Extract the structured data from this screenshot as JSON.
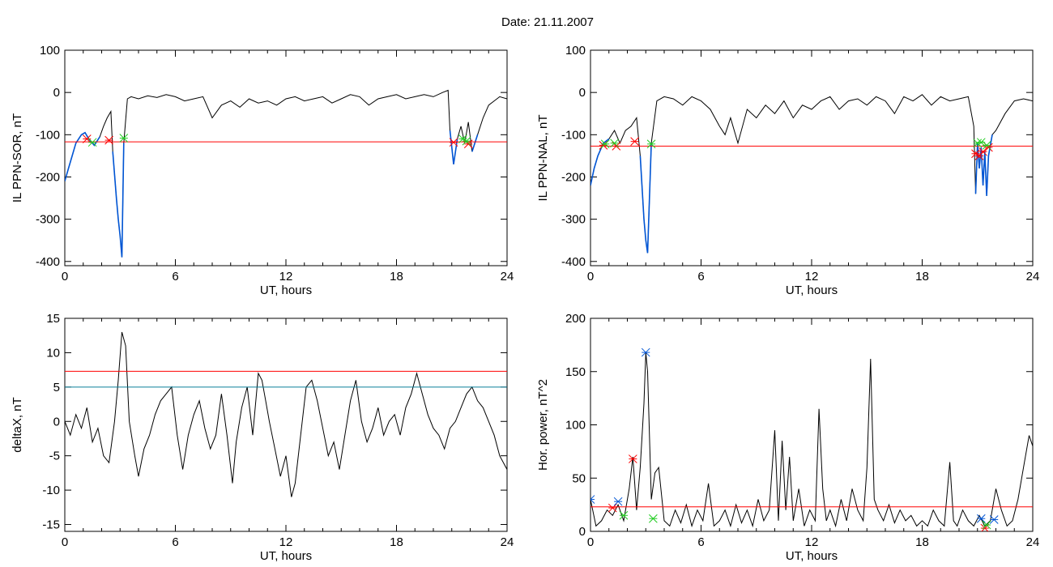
{
  "title": "Date:  21.11.2007",
  "colors": {
    "data": "#000000",
    "threshold": "#ff0000",
    "blue": "#0055d4",
    "green": "#22cc22",
    "teal": "#0a7f9a"
  },
  "chart_data": [
    {
      "type": "line",
      "id": "sor",
      "ylabel": "IL PPN-SOR, nT",
      "xlabel": "UT, hours",
      "xlim": [
        0,
        24
      ],
      "ylim": [
        -410,
        100
      ],
      "xticks": [
        0,
        6,
        12,
        18,
        24
      ],
      "yticks": [
        -400,
        -300,
        -200,
        -100,
        0,
        100
      ],
      "series": [
        {
          "role": "signal",
          "x": [
            0,
            0.2,
            0.4,
            0.6,
            0.9,
            1.1,
            1.3,
            1.6,
            1.9,
            2.1,
            2.3,
            2.5,
            2.6,
            2.8,
            2.9,
            3.0,
            3.1,
            3.2,
            3.4,
            3.6,
            4.0,
            4.5,
            5.0,
            5.5,
            6.0,
            6.5,
            7.0,
            7.5,
            8.0,
            8.5,
            9.0,
            9.5,
            10.0,
            10.5,
            11.0,
            11.5,
            12.0,
            12.5,
            13.0,
            13.5,
            14.0,
            14.5,
            15.0,
            15.5,
            16.0,
            16.5,
            17.0,
            17.5,
            18.0,
            18.5,
            19.0,
            19.5,
            20.0,
            20.5,
            20.8,
            20.9,
            21.0,
            21.1,
            21.2,
            21.3,
            21.5,
            21.7,
            21.9,
            22.1,
            22.4,
            22.7,
            23.0,
            23.3,
            23.6,
            24.0
          ],
          "y": [
            -210,
            -180,
            -150,
            -120,
            -100,
            -95,
            -110,
            -125,
            -105,
            -80,
            -60,
            -45,
            -140,
            -250,
            -300,
            -340,
            -390,
            -120,
            -15,
            -10,
            -15,
            -8,
            -12,
            -5,
            -10,
            -20,
            -15,
            -10,
            -60,
            -30,
            -20,
            -35,
            -15,
            -25,
            -20,
            -30,
            -15,
            -10,
            -20,
            -15,
            -10,
            -25,
            -15,
            -5,
            -10,
            -30,
            -15,
            -10,
            -5,
            -15,
            -10,
            -5,
            -10,
            0,
            5,
            -90,
            -130,
            -170,
            -140,
            -110,
            -80,
            -120,
            -70,
            -140,
            -100,
            -60,
            -30,
            -20,
            -10,
            -15
          ]
        },
        {
          "role": "threshold",
          "value": -117
        }
      ],
      "markers": [
        {
          "symbol": "asterisk",
          "color": "red",
          "x": [
            1.2,
            2.4,
            21.1,
            21.9
          ],
          "y": [
            -110,
            -113,
            -118,
            -122
          ]
        },
        {
          "symbol": "asterisk",
          "color": "green",
          "x": [
            1.5,
            3.2,
            21.6,
            21.8
          ],
          "y": [
            -118,
            -108,
            -110,
            -115
          ]
        }
      ]
    },
    {
      "type": "line",
      "id": "nal",
      "ylabel": "IL PPN-NAL, nT",
      "xlabel": "UT, hours",
      "xlim": [
        0,
        24
      ],
      "ylim": [
        -410,
        100
      ],
      "xticks": [
        0,
        6,
        12,
        18,
        24
      ],
      "yticks": [
        -400,
        -300,
        -200,
        -100,
        0,
        100
      ],
      "series": [
        {
          "role": "signal",
          "x": [
            0,
            0.2,
            0.4,
            0.7,
            1.0,
            1.3,
            1.6,
            1.9,
            2.2,
            2.5,
            2.7,
            2.9,
            3.0,
            3.1,
            3.3,
            3.6,
            4.0,
            4.5,
            5.0,
            5.5,
            6.0,
            6.5,
            7.0,
            7.3,
            7.6,
            8.0,
            8.5,
            9.0,
            9.5,
            10.0,
            10.5,
            11.0,
            11.5,
            12.0,
            12.5,
            13.0,
            13.5,
            14.0,
            14.5,
            15.0,
            15.5,
            16.0,
            16.5,
            17.0,
            17.5,
            18.0,
            18.5,
            19.0,
            19.5,
            20.0,
            20.5,
            20.8,
            20.9,
            21.0,
            21.1,
            21.2,
            21.3,
            21.4,
            21.5,
            21.6,
            21.8,
            22.0,
            22.5,
            23.0,
            23.5,
            24.0
          ],
          "y": [
            -220,
            -180,
            -150,
            -120,
            -110,
            -90,
            -120,
            -90,
            -80,
            -60,
            -150,
            -300,
            -350,
            -380,
            -120,
            -20,
            -10,
            -15,
            -30,
            -10,
            -20,
            -40,
            -80,
            -100,
            -60,
            -120,
            -40,
            -60,
            -30,
            -50,
            -20,
            -60,
            -30,
            -40,
            -20,
            -10,
            -40,
            -20,
            -15,
            -30,
            -10,
            -20,
            -50,
            -10,
            -20,
            -5,
            -30,
            -10,
            -20,
            -15,
            -10,
            -80,
            -240,
            -120,
            -180,
            -130,
            -220,
            -140,
            -245,
            -150,
            -100,
            -90,
            -50,
            -20,
            -15,
            -20
          ]
        },
        {
          "role": "threshold",
          "value": -127
        }
      ],
      "markers": [
        {
          "symbol": "asterisk",
          "color": "red",
          "x": [
            0.7,
            1.4,
            2.4,
            20.9,
            21.1,
            21.3,
            21.6
          ],
          "y": [
            -125,
            -127,
            -116,
            -145,
            -150,
            -140,
            -130
          ]
        },
        {
          "symbol": "asterisk",
          "color": "green",
          "x": [
            0.8,
            1.3,
            3.3,
            21.0,
            21.2,
            21.5
          ],
          "y": [
            -122,
            -120,
            -122,
            -120,
            -118,
            -125
          ]
        }
      ]
    },
    {
      "type": "line",
      "id": "deltax",
      "ylabel": "deltaX, nT",
      "xlabel": "UT, hours",
      "xlim": [
        0,
        24
      ],
      "ylim": [
        -16,
        15
      ],
      "xticks": [
        0,
        6,
        12,
        18,
        24
      ],
      "yticks": [
        -15,
        -10,
        -5,
        0,
        5,
        10,
        15
      ],
      "series": [
        {
          "role": "signal",
          "x": [
            0,
            0.3,
            0.6,
            0.9,
            1.2,
            1.5,
            1.8,
            2.1,
            2.4,
            2.7,
            2.9,
            3.1,
            3.3,
            3.5,
            3.8,
            4.0,
            4.3,
            4.6,
            4.9,
            5.2,
            5.5,
            5.8,
            6.1,
            6.4,
            6.7,
            7.0,
            7.3,
            7.6,
            7.9,
            8.2,
            8.5,
            8.8,
            9.1,
            9.3,
            9.6,
            9.9,
            10.2,
            10.5,
            10.7,
            10.9,
            11.1,
            11.4,
            11.7,
            12.0,
            12.3,
            12.5,
            12.8,
            13.1,
            13.4,
            13.7,
            14.0,
            14.3,
            14.6,
            14.9,
            15.2,
            15.5,
            15.8,
            16.1,
            16.4,
            16.7,
            17.0,
            17.3,
            17.6,
            17.9,
            18.2,
            18.5,
            18.8,
            19.1,
            19.4,
            19.7,
            20.0,
            20.3,
            20.6,
            20.9,
            21.2,
            21.5,
            21.8,
            22.1,
            22.4,
            22.7,
            23.0,
            23.3,
            23.6,
            24.0
          ],
          "y": [
            0,
            -2,
            1,
            -1,
            2,
            -3,
            -1,
            -5,
            -6,
            0,
            6,
            13,
            11,
            0,
            -5,
            -8,
            -4,
            -2,
            1,
            3,
            4,
            5,
            -2,
            -7,
            -2,
            1,
            3,
            -1,
            -4,
            -2,
            4,
            -2,
            -9,
            -3,
            2,
            5,
            -2,
            7,
            6,
            3,
            0,
            -4,
            -8,
            -5,
            -11,
            -9,
            -2,
            5,
            6,
            3,
            -1,
            -5,
            -3,
            -7,
            -2,
            3,
            6,
            0,
            -3,
            -1,
            2,
            -2,
            0,
            1,
            -2,
            2,
            4,
            7,
            4,
            1,
            -1,
            -2,
            -4,
            -1,
            0,
            2,
            4,
            5,
            3,
            2,
            0,
            -2,
            -5,
            -7
          ]
        },
        {
          "role": "threshold",
          "value": 7.3
        },
        {
          "role": "threshold-2",
          "value": 5.0
        }
      ]
    },
    {
      "type": "line",
      "id": "power",
      "ylabel": "Hor. power, nT^2",
      "xlabel": "UT, hours",
      "xlim": [
        0,
        24
      ],
      "ylim": [
        0,
        200
      ],
      "xticks": [
        0,
        6,
        12,
        18,
        24
      ],
      "yticks": [
        0,
        50,
        100,
        150,
        200
      ],
      "series": [
        {
          "role": "signal",
          "x": [
            0,
            0.3,
            0.6,
            0.9,
            1.2,
            1.5,
            1.8,
            2.1,
            2.3,
            2.5,
            2.7,
            2.9,
            3.0,
            3.1,
            3.3,
            3.5,
            3.7,
            4.0,
            4.3,
            4.6,
            4.9,
            5.2,
            5.5,
            5.8,
            6.1,
            6.4,
            6.7,
            7.0,
            7.3,
            7.6,
            7.9,
            8.2,
            8.5,
            8.8,
            9.1,
            9.4,
            9.7,
            10.0,
            10.2,
            10.4,
            10.6,
            10.8,
            11.0,
            11.3,
            11.6,
            11.9,
            12.2,
            12.4,
            12.6,
            12.8,
            13.0,
            13.3,
            13.6,
            13.9,
            14.2,
            14.5,
            14.8,
            15.0,
            15.2,
            15.4,
            15.6,
            15.9,
            16.2,
            16.5,
            16.8,
            17.1,
            17.4,
            17.7,
            18.0,
            18.3,
            18.6,
            18.9,
            19.2,
            19.5,
            19.7,
            19.9,
            20.2,
            20.5,
            20.8,
            21.1,
            21.4,
            21.7,
            22.0,
            22.3,
            22.6,
            22.9,
            23.2,
            23.5,
            23.8,
            24.0
          ],
          "y": [
            30,
            5,
            10,
            20,
            15,
            25,
            10,
            40,
            70,
            20,
            60,
            120,
            168,
            150,
            30,
            55,
            60,
            10,
            5,
            20,
            8,
            25,
            5,
            20,
            10,
            45,
            5,
            10,
            20,
            5,
            25,
            8,
            20,
            5,
            30,
            10,
            20,
            95,
            10,
            85,
            20,
            70,
            10,
            40,
            5,
            20,
            10,
            115,
            40,
            10,
            20,
            5,
            30,
            10,
            40,
            20,
            10,
            60,
            162,
            30,
            20,
            10,
            25,
            8,
            20,
            10,
            15,
            5,
            10,
            5,
            20,
            10,
            5,
            65,
            10,
            5,
            20,
            10,
            5,
            15,
            5,
            10,
            40,
            20,
            5,
            10,
            30,
            60,
            90,
            80
          ]
        },
        {
          "role": "threshold",
          "value": 23
        }
      ],
      "markers": [
        {
          "symbol": "asterisk",
          "color": "red",
          "x": [
            2.3,
            1.2,
            21.4
          ],
          "y": [
            68,
            22,
            3
          ]
        },
        {
          "symbol": "asterisk",
          "color": "blue",
          "x": [
            0,
            1.5,
            3.0,
            21.2,
            21.9
          ],
          "y": [
            30,
            28,
            168,
            12,
            11
          ]
        },
        {
          "symbol": "asterisk",
          "color": "green",
          "x": [
            1.8,
            3.4,
            21.5
          ],
          "y": [
            15,
            12,
            6
          ]
        }
      ]
    }
  ]
}
